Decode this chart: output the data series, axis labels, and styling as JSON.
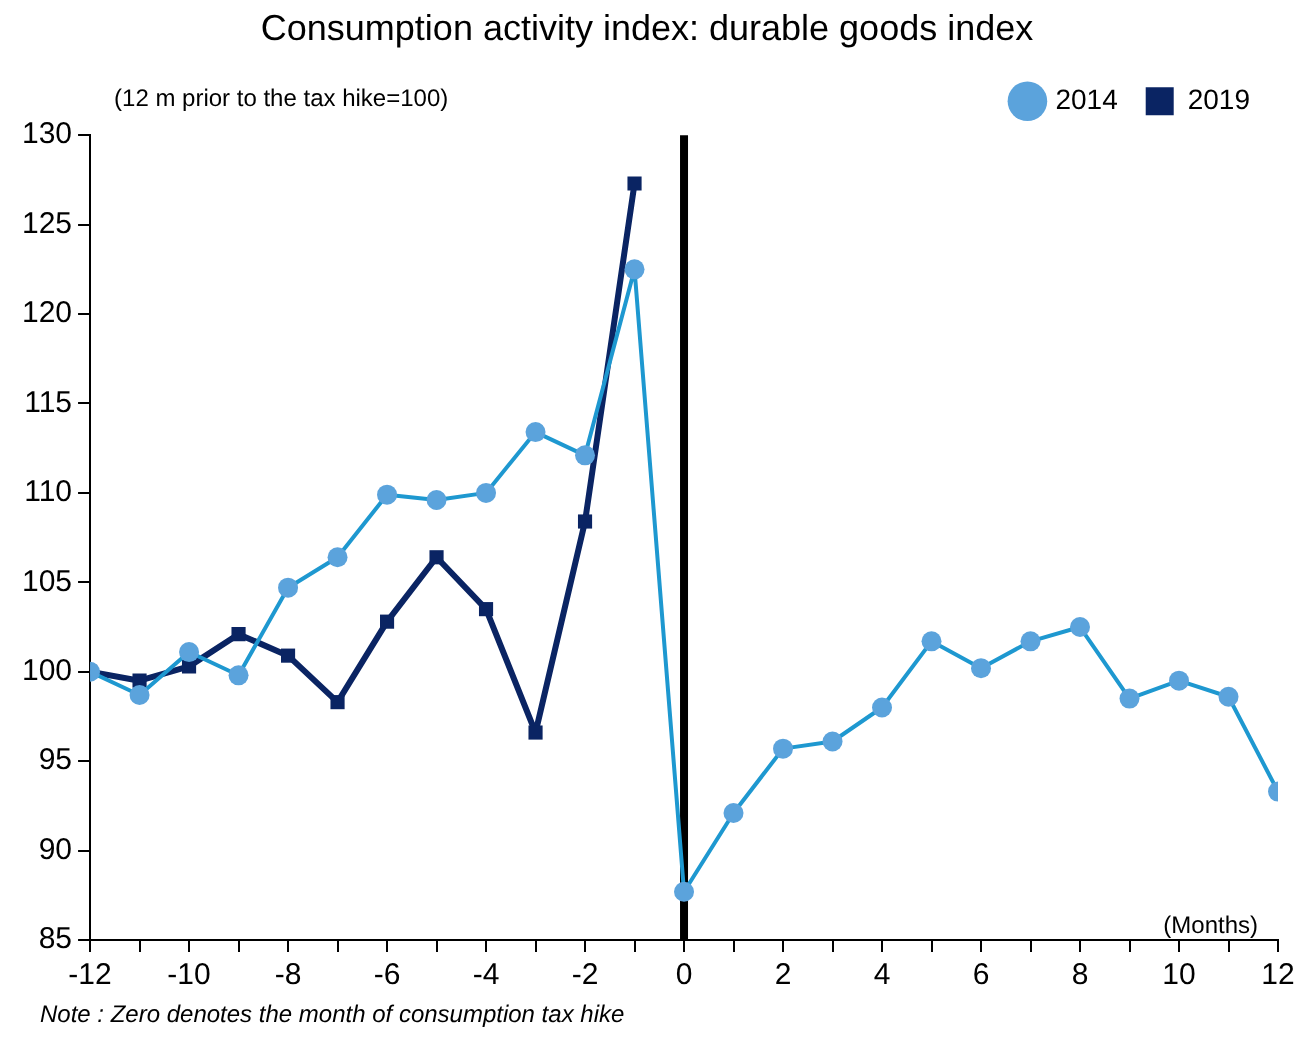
{
  "chart_data": {
    "type": "line",
    "title": "Consumption activity index: durable goods index",
    "ylabel": "(12 m prior to the tax hike=100)",
    "xlabel": "(Months)",
    "annotations": [
      "Note :  Zero denotes the month of consumption tax hike"
    ],
    "series": [
      {
        "name": "2014",
        "color": "#1e98d0",
        "marker": "circle",
        "x": [
          -12,
          -11,
          -10,
          -9,
          -8,
          -7,
          -6,
          -5,
          -4,
          -3,
          -2,
          -1,
          0,
          1,
          2,
          3,
          4,
          5,
          6,
          7,
          8,
          9,
          10,
          11,
          12
        ],
        "values": [
          100,
          98.7,
          101.1,
          99.8,
          104.7,
          106.4,
          109.9,
          109.6,
          110,
          113.4,
          112.1,
          122.5,
          87.7,
          92.1,
          95.7,
          96.1,
          98,
          101.7,
          100.2,
          101.7,
          102.5,
          98.5,
          99.5,
          98.6,
          93.3
        ]
      },
      {
        "name": "2019",
        "color": "#0a2463",
        "marker": "square",
        "x": [
          -12,
          -11,
          -10,
          -9,
          -8,
          -7,
          -6,
          -5,
          -4,
          -3,
          -2,
          -1
        ],
        "values": [
          100,
          99.5,
          100.3,
          102.1,
          100.9,
          98.3,
          102.8,
          106.4,
          103.5,
          96.6,
          108.4,
          127.3
        ]
      }
    ],
    "xlim": [
      -12,
      12
    ],
    "xticks": [
      -12,
      {
        "value": -11,
        "label": null
      },
      -10,
      {
        "value": -9,
        "label": null
      },
      -8,
      {
        "value": -7,
        "label": null
      },
      -6,
      {
        "value": -5,
        "label": null
      },
      -4,
      {
        "value": -3,
        "label": null
      },
      -2,
      {
        "value": -1,
        "label": null
      },
      0,
      {
        "value": 1,
        "label": null
      },
      2,
      {
        "value": 3,
        "label": null
      },
      4,
      {
        "value": 5,
        "label": null
      },
      6,
      {
        "value": 7,
        "label": null
      },
      8,
      {
        "value": 9,
        "label": null
      },
      10,
      {
        "value": 11,
        "label": null
      },
      12
    ],
    "ylim": [
      85,
      130
    ],
    "yticks": [
      85,
      90,
      95,
      100,
      105,
      110,
      115,
      120,
      125,
      130
    ],
    "ref_lines": [
      {
        "axis": "x",
        "value": 0,
        "color": "#000000"
      }
    ],
    "grid": false,
    "legend": "top right"
  }
}
